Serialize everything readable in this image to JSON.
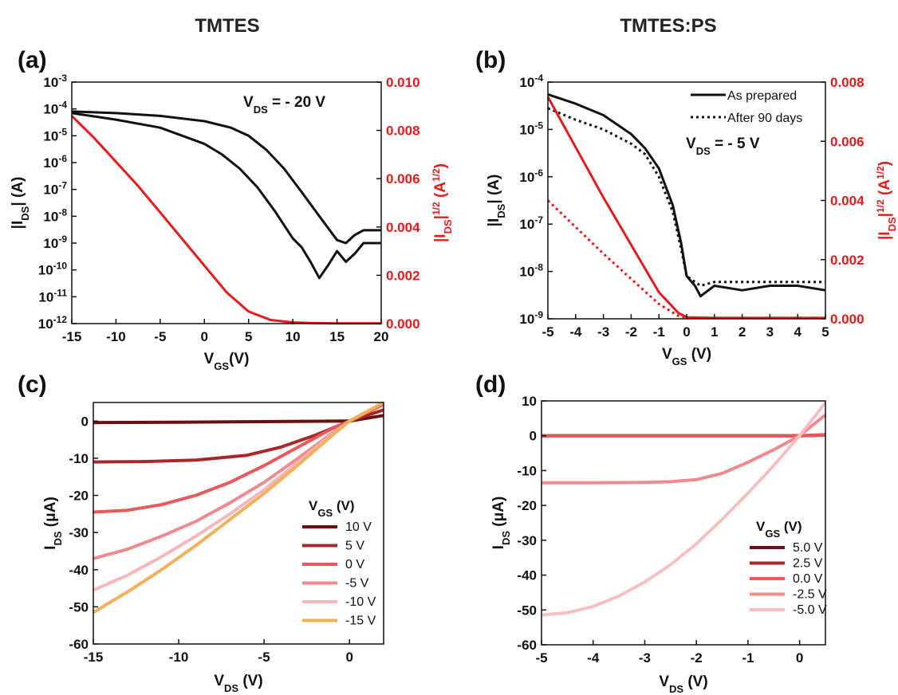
{
  "titles": {
    "left": "TMTES",
    "right": "TMTES:PS"
  },
  "chart_data": [
    {
      "panel": "(a)",
      "type": "line",
      "xlabel": "V",
      "xlabel_sub": "GS",
      "xlabel_unit": "(V)",
      "ylabel": "|I",
      "ylabel_sub": "DS",
      "ylabel_unit": "| (A)",
      "ylabel2": "|I",
      "ylabel2_sub": "DS",
      "ylabel2_sup": "1/2",
      "ylabel2_unit": " (A",
      "ylabel2_unit_sup": "1/2",
      "ylabel2_close": ")",
      "xlim": [
        -15,
        20
      ],
      "ylim_log": [
        -12,
        -3
      ],
      "y2lim": [
        0,
        0.01
      ],
      "x_ticks": [
        "-15",
        "-10",
        "-5",
        "0",
        "5",
        "10",
        "15",
        "20"
      ],
      "y_ticks": [
        "10",
        "10",
        "10",
        "10",
        "10",
        "10",
        "10",
        "10",
        "10",
        "10"
      ],
      "y_tick_exps": [
        "-12",
        "-11",
        "-10",
        "-9",
        "-8",
        "-7",
        "-6",
        "-5",
        "-4",
        "-3"
      ],
      "y2_ticks": [
        "0.000",
        "0.002",
        "0.004",
        "0.006",
        "0.008",
        "0.010"
      ],
      "annotation": {
        "text": "V",
        "sub": "DS",
        "rest": " = - 20 V"
      },
      "series": [
        {
          "axis": "left",
          "color": "#111111",
          "style": "solid",
          "x": [
            -15,
            -10,
            -5,
            0,
            3,
            5,
            7,
            9,
            11,
            13,
            15,
            16,
            17,
            18,
            20
          ],
          "y": [
            8e-05,
            7e-05,
            5.5e-05,
            3.5e-05,
            2e-05,
            1e-05,
            3e-06,
            6e-07,
            8e-08,
            1e-08,
            1.3e-09,
            1e-09,
            2e-09,
            3e-09,
            3e-09
          ]
        },
        {
          "axis": "left",
          "color": "#111111",
          "style": "solid",
          "x": [
            -15,
            -10,
            -5,
            0,
            2,
            4,
            6,
            8,
            10,
            11,
            12,
            13,
            14,
            15,
            16,
            17,
            18,
            20
          ],
          "y": [
            7e-05,
            4e-05,
            2e-05,
            5e-06,
            2e-06,
            6e-07,
            1.2e-07,
            1.5e-08,
            1.5e-09,
            7e-10,
            2e-10,
            5e-11,
            1.5e-10,
            5e-10,
            2e-10,
            4e-10,
            1e-09,
            1e-09
          ]
        },
        {
          "axis": "right",
          "color": "#e41a1c",
          "style": "solid",
          "x": [
            -15,
            -12.5,
            -10,
            -7.5,
            -5,
            -2.5,
            0,
            2.5,
            5,
            7.5,
            10,
            12.5,
            15,
            17.5,
            20
          ],
          "y": [
            0.0086,
            0.0077,
            0.0067,
            0.0057,
            0.0046,
            0.0035,
            0.0024,
            0.0013,
            0.0005,
            0.00015,
            5e-05,
            2e-05,
            1e-05,
            1e-05,
            1e-05
          ]
        }
      ]
    },
    {
      "panel": "(b)",
      "type": "line",
      "xlabel": "V",
      "xlabel_sub": "GS",
      "xlabel_unit": " (V)",
      "ylabel": "|I",
      "ylabel_sub": "DS",
      "ylabel_unit": "| (A)",
      "ylabel2": "|I",
      "ylabel2_sub": "DS",
      "ylabel2_sup": "1/2",
      "ylabel2_unit": " (A",
      "ylabel2_unit_sup": "1/2",
      "ylabel2_close": ")",
      "xlim": [
        -5,
        5
      ],
      "ylim_log": [
        -9,
        -4
      ],
      "y2lim": [
        0,
        0.008
      ],
      "x_ticks": [
        "-5",
        "-4",
        "-3",
        "-2",
        "-1",
        "0",
        "1",
        "2",
        "3",
        "4",
        "5"
      ],
      "y_ticks": [
        "10",
        "10",
        "10",
        "10",
        "10",
        "10"
      ],
      "y_tick_exps": [
        "-9",
        "-8",
        "-7",
        "-6",
        "-5",
        "-4"
      ],
      "y2_ticks": [
        "0.000",
        "0.002",
        "0.004",
        "0.006",
        "0.008"
      ],
      "annotation": {
        "text": "V",
        "sub": "DS",
        "rest": " = - 5 V"
      },
      "legend": [
        "As prepared",
        "After 90 days"
      ],
      "series": [
        {
          "name": "As prepared",
          "axis": "left",
          "color": "#111111",
          "style": "solid",
          "x": [
            -5,
            -4,
            -3,
            -2,
            -1.5,
            -1,
            -0.5,
            -0.2,
            0,
            0.3,
            0.5,
            1,
            2,
            3,
            4,
            5
          ],
          "y": [
            5.5e-05,
            3.5e-05,
            2e-05,
            8e-06,
            4e-06,
            1.5e-06,
            2.5e-07,
            4e-08,
            8e-09,
            5e-09,
            3e-09,
            5e-09,
            4e-09,
            5e-09,
            5e-09,
            4e-09
          ]
        },
        {
          "name": "After 90 days",
          "axis": "left",
          "color": "#111111",
          "style": "dotted",
          "x": [
            -5,
            -4,
            -3,
            -2,
            -1.5,
            -1,
            -0.5,
            -0.2,
            0,
            0.3,
            0.5,
            1,
            2,
            3,
            4,
            5
          ],
          "y": [
            2.8e-05,
            1.6e-05,
            1e-05,
            5e-06,
            3e-06,
            1e-06,
            1.8e-07,
            3e-08,
            8e-09,
            6e-09,
            5e-09,
            6e-09,
            6e-09,
            6e-09,
            6e-09,
            6e-09
          ]
        },
        {
          "axis": "right",
          "color": "#e41a1c",
          "style": "solid",
          "x": [
            -5,
            -4,
            -3,
            -2,
            -1,
            -0.3,
            0,
            1,
            2,
            3,
            4,
            5
          ],
          "y": [
            0.0075,
            0.0058,
            0.0041,
            0.0025,
            0.0009,
            0.0002,
            5e-05,
            3e-05,
            3e-05,
            3e-05,
            3e-05,
            3e-05
          ]
        },
        {
          "axis": "right",
          "color": "#e41a1c",
          "style": "dotted",
          "x": [
            -5,
            -4,
            -3,
            -2,
            -1,
            -0.3,
            0,
            1,
            2,
            3,
            4,
            5
          ],
          "y": [
            0.004,
            0.0031,
            0.0022,
            0.00135,
            0.0005,
            0.0001,
            4e-05,
            3e-05,
            3e-05,
            3e-05,
            3e-05,
            3e-05
          ]
        }
      ]
    },
    {
      "panel": "(c)",
      "type": "line",
      "xlabel": "V",
      "xlabel_sub": "DS",
      "xlabel_unit": " (V)",
      "ylabel": "I",
      "ylabel_sub": "DS",
      "ylabel_unit": " (μA)",
      "xlim": [
        -15,
        2
      ],
      "ylim": [
        -60,
        5
      ],
      "x_ticks": [
        "-15",
        "-10",
        "-5",
        "0"
      ],
      "x_tick_vals": [
        -15,
        -10,
        -5,
        0
      ],
      "y_ticks": [
        "-60",
        "-50",
        "-40",
        "-30",
        "-20",
        "-10",
        "0"
      ],
      "y_tick_vals": [
        -60,
        -50,
        -40,
        -30,
        -20,
        -10,
        0
      ],
      "legend_title": {
        "text": "V",
        "sub": "GS",
        "rest": " (V)"
      },
      "series": [
        {
          "name": "10 V",
          "color": "#6b0f0f",
          "x": [
            -15,
            -10,
            -5,
            0,
            2
          ],
          "y": [
            -0.4,
            -0.3,
            -0.15,
            0,
            1.5
          ]
        },
        {
          "name": "5 V",
          "color": "#a8282a",
          "x": [
            -15,
            -12,
            -9,
            -6,
            -4,
            -2,
            0,
            2
          ],
          "y": [
            -11,
            -10.9,
            -10.5,
            -9.2,
            -7,
            -3.8,
            0,
            3
          ]
        },
        {
          "name": "0 V",
          "color": "#e8585c",
          "x": [
            -15,
            -13,
            -11,
            -9,
            -7,
            -5,
            -3,
            -1,
            0,
            2
          ],
          "y": [
            -24.5,
            -24,
            -22.5,
            -20,
            -16.5,
            -12,
            -7,
            -2,
            0,
            4.5
          ]
        },
        {
          "name": "-5 V",
          "color": "#ef8a8d",
          "x": [
            -15,
            -13,
            -11,
            -9,
            -7,
            -5,
            -3,
            -1,
            0,
            2
          ],
          "y": [
            -37,
            -34.5,
            -31,
            -27,
            -22,
            -16.5,
            -10,
            -3.2,
            0,
            5
          ]
        },
        {
          "name": "-10 V",
          "color": "#f6b7ba",
          "x": [
            -15,
            -13,
            -11,
            -9,
            -7,
            -5,
            -3,
            -1,
            0,
            2
          ],
          "y": [
            -45.5,
            -41.5,
            -36.5,
            -31,
            -25,
            -18.5,
            -11,
            -3.5,
            0,
            5
          ]
        },
        {
          "name": "-15 V",
          "color": "#f3b05a",
          "x": [
            -15,
            -13,
            -11,
            -9,
            -7,
            -5,
            -3,
            -1,
            0,
            2
          ],
          "y": [
            -51.5,
            -46,
            -40,
            -33.5,
            -26.5,
            -19.5,
            -11.8,
            -3.8,
            0,
            5.5
          ]
        }
      ]
    },
    {
      "panel": "(d)",
      "type": "line",
      "xlabel": "V",
      "xlabel_sub": "DS",
      "xlabel_unit": " (V)",
      "ylabel": "I",
      "ylabel_sub": "DS",
      "ylabel_unit": " (μA)",
      "xlim": [
        -5,
        0.5
      ],
      "ylim": [
        -60,
        10
      ],
      "x_ticks": [
        "-5",
        "-4",
        "-3",
        "-2",
        "-1",
        "0"
      ],
      "x_tick_vals": [
        -5,
        -4,
        -3,
        -2,
        -1,
        0
      ],
      "y_ticks": [
        "-60",
        "-50",
        "-40",
        "-30",
        "-20",
        "-10",
        "0",
        "10"
      ],
      "y_tick_vals": [
        -60,
        -50,
        -40,
        -30,
        -20,
        -10,
        0,
        10
      ],
      "legend_title": {
        "text": "V",
        "sub": "GS",
        "rest": " (V)"
      },
      "series": [
        {
          "name": "5.0 V",
          "color": "#6b0f0f",
          "x": [
            -5,
            -2,
            0,
            0.5
          ],
          "y": [
            0,
            0,
            0,
            0.2
          ]
        },
        {
          "name": "2.5 V",
          "color": "#a8282a",
          "x": [
            -5,
            -2,
            0,
            0.5
          ],
          "y": [
            0,
            0,
            0,
            0.2
          ]
        },
        {
          "name": "0.0 V",
          "color": "#e8585c",
          "x": [
            -5,
            -2,
            0,
            0.5
          ],
          "y": [
            0,
            0,
            0,
            0.3
          ]
        },
        {
          "name": "-2.5 V",
          "color": "#ef8a8d",
          "x": [
            -5,
            -4,
            -3,
            -2.5,
            -2,
            -1.5,
            -1,
            -0.5,
            0,
            0.5
          ],
          "y": [
            -13.5,
            -13.5,
            -13.4,
            -13.2,
            -12.6,
            -10.8,
            -7.6,
            -4,
            0,
            6
          ]
        },
        {
          "name": "-5.0 V",
          "color": "#f6c0c3",
          "x": [
            -5,
            -4.5,
            -4,
            -3.5,
            -3,
            -2.5,
            -2,
            -1.5,
            -1,
            -0.5,
            0,
            0.5
          ],
          "y": [
            -51.5,
            -50.8,
            -49,
            -46,
            -42,
            -37,
            -31,
            -24,
            -16.5,
            -8.5,
            0,
            9.5
          ]
        }
      ]
    }
  ]
}
